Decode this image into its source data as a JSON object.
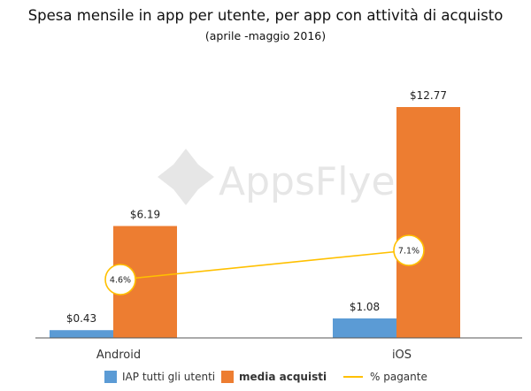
{
  "title": "Spesa mensile in app per utente, per app con attività di acquisto",
  "subtitle": "(aprile -maggio 2016)",
  "watermark": "AppsFlyer",
  "colors": {
    "iap": "#5b9bd5",
    "purchase": "#ed7d31",
    "paying": "#ffc000"
  },
  "legend": {
    "iap_prefix": "IAP",
    "iap_label": "tutti gli utenti",
    "purchase_label": "media acquisti",
    "paying_label": "% pagante"
  },
  "chart_data": {
    "type": "bar",
    "categories": [
      "Android",
      "iOS"
    ],
    "series": [
      {
        "name": "IAP tutti gli utenti",
        "values": [
          0.43,
          1.08
        ],
        "labels": [
          "$0.43",
          "$1.08"
        ]
      },
      {
        "name": "media acquisti",
        "values": [
          6.19,
          12.77
        ],
        "labels": [
          "$6.19",
          "$12.77"
        ]
      }
    ],
    "line_series": {
      "name": "% pagante",
      "values": [
        4.6,
        7.1
      ],
      "labels": [
        "4.6%",
        "7.1%"
      ]
    },
    "ylim": [
      0,
      13.5
    ],
    "grid": false,
    "legend_position": "bottom"
  }
}
